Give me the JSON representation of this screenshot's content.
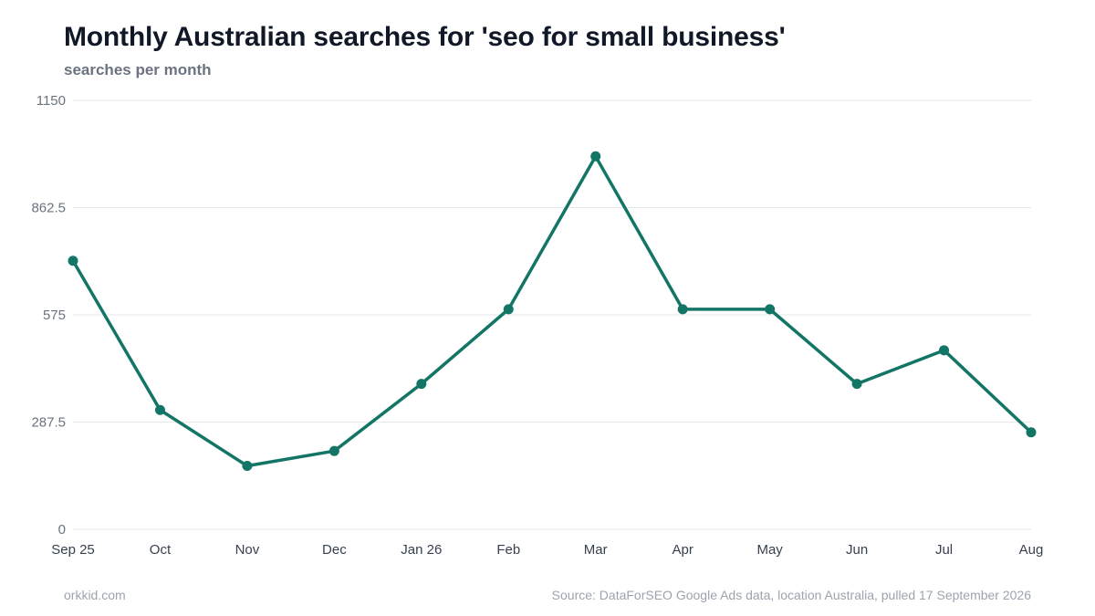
{
  "title": "Monthly Australian searches for 'seo for small business'",
  "subtitle": "searches per month",
  "footer": {
    "site": "orkkid.com",
    "source": "Source: DataForSEO Google Ads data, location Australia, pulled 17 September 2026"
  },
  "colors": {
    "line": "#137565",
    "grid": "#e5e7eb"
  },
  "chart_data": {
    "type": "line",
    "categories": [
      "Sep 25",
      "Oct",
      "Nov",
      "Dec",
      "Jan 26",
      "Feb",
      "Mar",
      "Apr",
      "May",
      "Jun",
      "Jul",
      "Aug"
    ],
    "values": [
      720,
      320,
      170,
      210,
      390,
      590,
      1000,
      590,
      590,
      390,
      480,
      260
    ],
    "ylim": [
      0,
      1150
    ],
    "yticks": [
      "0",
      "287.5",
      "575",
      "862.5",
      "1150"
    ],
    "grid": true,
    "legend": "none"
  }
}
